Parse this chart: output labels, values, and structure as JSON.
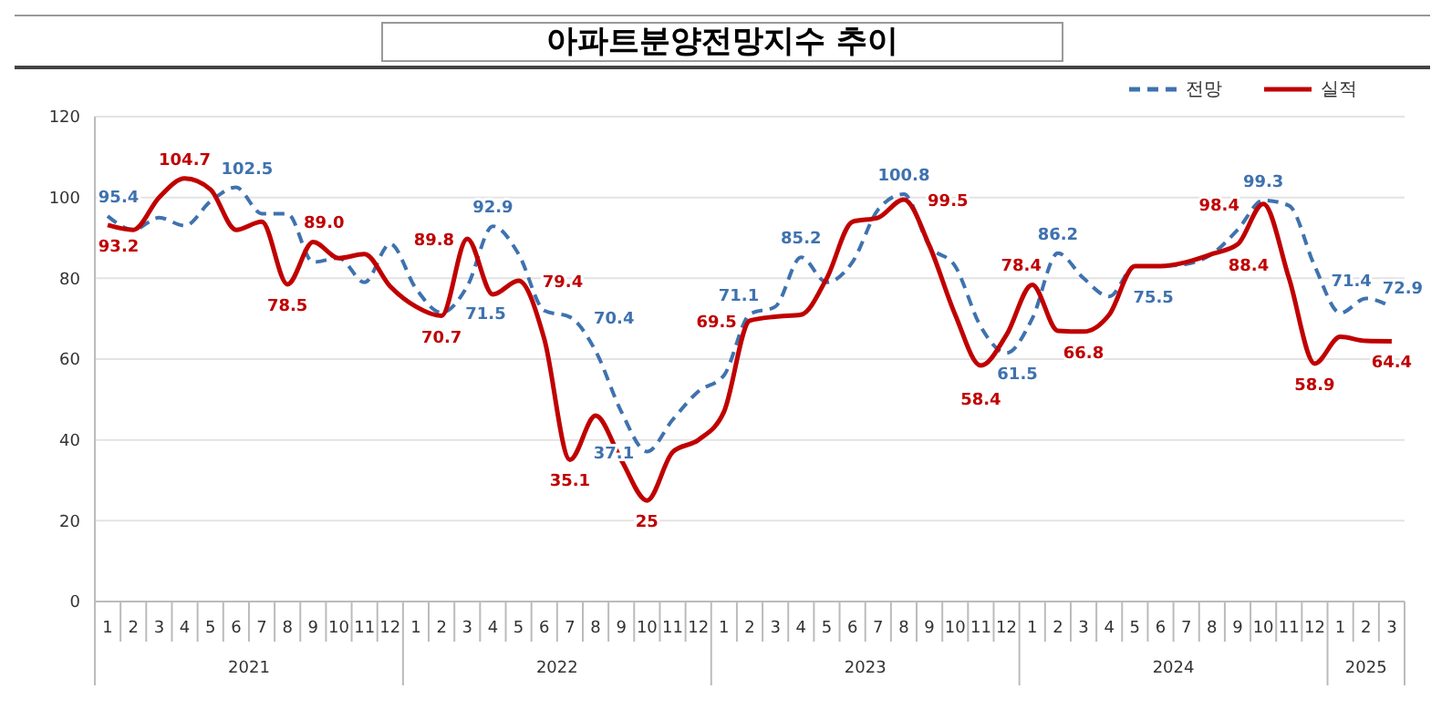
{
  "chart_data": {
    "type": "line",
    "title": "아파트분양전망지수 추이",
    "categories": [
      "1",
      "2",
      "3",
      "4",
      "5",
      "6",
      "7",
      "8",
      "9",
      "10",
      "11",
      "12",
      "1",
      "2",
      "3",
      "4",
      "5",
      "6",
      "7",
      "8",
      "9",
      "10",
      "11",
      "12",
      "1",
      "2",
      "3",
      "4",
      "5",
      "6",
      "7",
      "8",
      "9",
      "10",
      "11",
      "12",
      "1",
      "2",
      "3",
      "4",
      "5",
      "6",
      "7",
      "8",
      "9",
      "10",
      "11",
      "12",
      "1",
      "2",
      "3"
    ],
    "annotations": [
      "2021",
      "2022",
      "2023",
      "2024",
      "2025"
    ],
    "series": [
      {
        "name": "전망",
        "color": "#3f72af",
        "line_style": "dashed",
        "values": [
          95.4,
          92,
          95,
          93,
          99,
          102.5,
          96,
          96,
          84,
          85,
          79,
          88.5,
          77.5,
          71.5,
          78,
          92.9,
          86,
          72,
          70.4,
          62,
          47,
          37.1,
          45,
          52,
          56,
          71.1,
          73,
          85.2,
          79,
          84,
          97,
          100.8,
          88,
          83,
          68,
          61.5,
          70,
          86.2,
          80,
          75.5,
          83,
          83,
          83.5,
          86,
          92,
          99.3,
          98,
          83,
          71.4,
          75,
          72.9
        ],
        "value_labels": [
          "95.4",
          null,
          null,
          null,
          null,
          "102.5",
          null,
          null,
          null,
          null,
          null,
          null,
          null,
          "71.5",
          null,
          "92.9",
          null,
          null,
          "70.4",
          null,
          null,
          "37.1",
          null,
          null,
          null,
          "71.1",
          null,
          "85.2",
          null,
          null,
          null,
          "100.8",
          null,
          null,
          null,
          "61.5",
          null,
          "86.2",
          null,
          "75.5",
          null,
          null,
          null,
          null,
          null,
          "99.3",
          null,
          null,
          "71.4",
          null,
          "72.9"
        ]
      },
      {
        "name": "실적",
        "color": "#c00000",
        "line_style": "solid",
        "values": [
          93.2,
          92,
          100,
          104.7,
          102,
          92,
          94,
          78.5,
          89.0,
          85,
          86,
          78,
          73,
          70.7,
          89.8,
          76,
          79.4,
          65,
          35.1,
          46,
          35,
          25,
          37,
          40,
          47,
          69.5,
          70.5,
          71,
          80,
          94,
          95,
          99.5,
          88,
          71,
          58.4,
          66,
          78.4,
          67,
          66.8,
          71,
          83,
          83,
          84,
          86,
          88.4,
          98.4,
          80,
          58.9,
          65.5,
          64.5,
          64.4
        ],
        "value_labels": [
          "93.2",
          null,
          null,
          "104.7",
          null,
          null,
          null,
          "78.5",
          "89.0",
          null,
          null,
          null,
          null,
          "70.7",
          "89.8",
          null,
          "79.4",
          null,
          "35.1",
          null,
          null,
          "25",
          null,
          null,
          null,
          "69.5",
          null,
          null,
          null,
          null,
          null,
          "99.5",
          null,
          null,
          "58.4",
          null,
          "78.4",
          null,
          "66.8",
          null,
          null,
          null,
          null,
          null,
          "88.4",
          "98.4",
          null,
          "58.9",
          null,
          null,
          "64.4"
        ]
      }
    ],
    "ylim": [
      0,
      120
    ],
    "yticks": [
      0,
      20,
      40,
      60,
      80,
      100,
      120
    ],
    "grid": "y",
    "legend": "top right",
    "marker": "none"
  }
}
